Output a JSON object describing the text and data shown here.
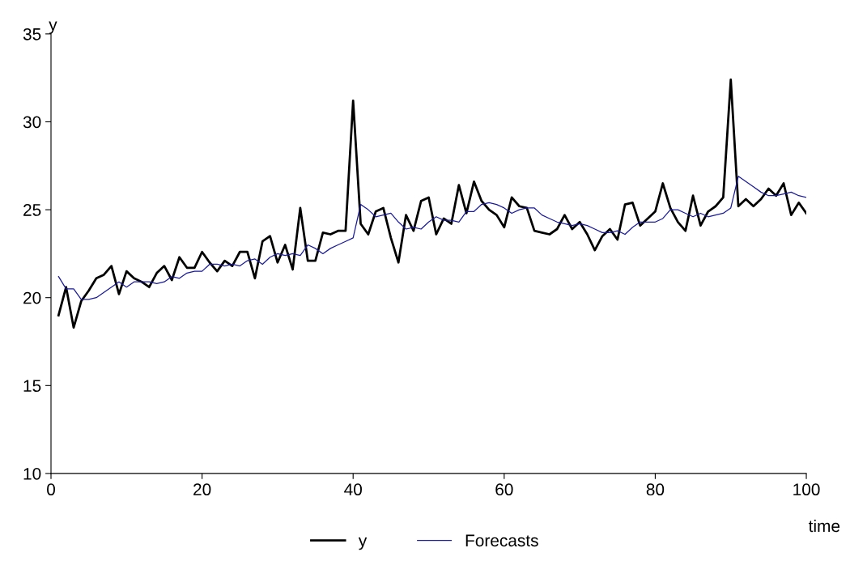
{
  "chart_data": {
    "type": "line",
    "xlabel": "time",
    "ylabel": "y",
    "x": [
      1,
      2,
      3,
      4,
      5,
      6,
      7,
      8,
      9,
      10,
      11,
      12,
      13,
      14,
      15,
      16,
      17,
      18,
      19,
      20,
      21,
      22,
      23,
      24,
      25,
      26,
      27,
      28,
      29,
      30,
      31,
      32,
      33,
      34,
      35,
      36,
      37,
      38,
      39,
      40,
      41,
      42,
      43,
      44,
      45,
      46,
      47,
      48,
      49,
      50,
      51,
      52,
      53,
      54,
      55,
      56,
      57,
      58,
      59,
      60,
      61,
      62,
      63,
      64,
      65,
      66,
      67,
      68,
      69,
      70,
      71,
      72,
      73,
      74,
      75,
      76,
      77,
      78,
      79,
      80,
      81,
      82,
      83,
      84,
      85,
      86,
      87,
      88,
      89,
      90,
      91,
      92,
      93,
      94,
      95,
      96,
      97,
      98,
      99,
      100
    ],
    "series": [
      {
        "name": "y",
        "color": "#000000",
        "values": [
          19.0,
          20.6,
          18.3,
          19.8,
          20.4,
          21.1,
          21.3,
          21.8,
          20.2,
          21.5,
          21.1,
          20.9,
          20.6,
          21.4,
          21.8,
          21.0,
          22.3,
          21.7,
          21.7,
          22.6,
          22.0,
          21.5,
          22.1,
          21.8,
          22.6,
          22.6,
          21.1,
          23.2,
          23.5,
          22.0,
          23.0,
          21.6,
          25.1,
          22.1,
          22.1,
          23.7,
          23.6,
          23.8,
          23.8,
          31.2,
          24.2,
          23.6,
          24.9,
          25.1,
          23.4,
          22.0,
          24.7,
          23.8,
          25.5,
          25.7,
          23.6,
          24.5,
          24.2,
          26.4,
          24.8,
          26.6,
          25.5,
          25.0,
          24.7,
          24.0,
          25.7,
          25.2,
          25.1,
          23.8,
          23.7,
          23.6,
          23.9,
          24.7,
          23.9,
          24.3,
          23.6,
          22.7,
          23.5,
          23.9,
          23.3,
          25.3,
          25.4,
          24.1,
          24.5,
          24.9,
          26.5,
          25.1,
          24.3,
          23.8,
          25.8,
          24.1,
          24.9,
          25.2,
          25.7,
          32.4,
          25.2,
          25.6,
          25.2,
          25.6,
          26.2,
          25.8,
          26.5,
          24.7,
          25.4,
          24.8
        ]
      },
      {
        "name": "Forecasts",
        "color": "#1a1a9a",
        "values": [
          21.2,
          20.5,
          20.5,
          19.9,
          19.9,
          20.0,
          20.3,
          20.6,
          20.9,
          20.6,
          20.9,
          20.9,
          20.9,
          20.8,
          20.9,
          21.2,
          21.1,
          21.4,
          21.5,
          21.5,
          21.9,
          21.9,
          21.8,
          21.9,
          21.8,
          22.1,
          22.2,
          21.9,
          22.3,
          22.5,
          22.4,
          22.5,
          22.4,
          23.0,
          22.8,
          22.5,
          22.8,
          23.0,
          23.2,
          23.4,
          25.3,
          25.0,
          24.6,
          24.7,
          24.8,
          24.3,
          23.9,
          24.0,
          23.9,
          24.3,
          24.6,
          24.4,
          24.4,
          24.3,
          24.9,
          24.9,
          25.3,
          25.4,
          25.3,
          25.1,
          24.8,
          25.0,
          25.1,
          25.1,
          24.7,
          24.5,
          24.3,
          24.2,
          24.1,
          24.2,
          24.1,
          23.9,
          23.7,
          23.7,
          23.8,
          23.6,
          24.0,
          24.3,
          24.3,
          24.3,
          24.5,
          25.0,
          25.0,
          24.8,
          24.6,
          24.8,
          24.6,
          24.7,
          24.8,
          25.1,
          26.9,
          26.6,
          26.3,
          26.0,
          25.8,
          25.8,
          25.9,
          26.0,
          25.8,
          25.7
        ]
      }
    ],
    "xlim": [
      0,
      100
    ],
    "xticks": [
      0,
      20,
      40,
      60,
      80,
      100
    ],
    "ylim": [
      10,
      35
    ],
    "yticks": [
      10,
      15,
      20,
      25,
      30,
      35
    ],
    "legend": "bottom"
  }
}
